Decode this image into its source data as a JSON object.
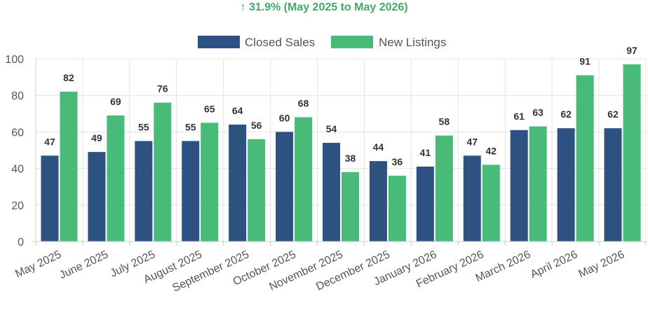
{
  "headline": {
    "arrow": "↑",
    "text": "31.9% (May 2025 to May 2026)",
    "color": "#3daa6a"
  },
  "chart_data": {
    "type": "bar",
    "categories": [
      "May 2025",
      "June 2025",
      "July 2025",
      "August 2025",
      "September 2025",
      "October 2025",
      "November 2025",
      "December 2025",
      "January 2026",
      "February 2026",
      "March 2026",
      "April 2026",
      "May 2026"
    ],
    "series": [
      {
        "name": "Closed Sales",
        "color": "#2d5282",
        "values": [
          47,
          49,
          55,
          55,
          64,
          60,
          54,
          44,
          41,
          47,
          61,
          62,
          62
        ]
      },
      {
        "name": "New Listings",
        "color": "#48bb78",
        "values": [
          82,
          69,
          76,
          65,
          56,
          68,
          38,
          36,
          58,
          42,
          63,
          91,
          97
        ]
      }
    ],
    "ylim": [
      0,
      100
    ],
    "yticks": [
      0,
      20,
      40,
      60,
      80,
      100
    ],
    "grid": true,
    "legend": "top-center",
    "data_labels": true
  }
}
